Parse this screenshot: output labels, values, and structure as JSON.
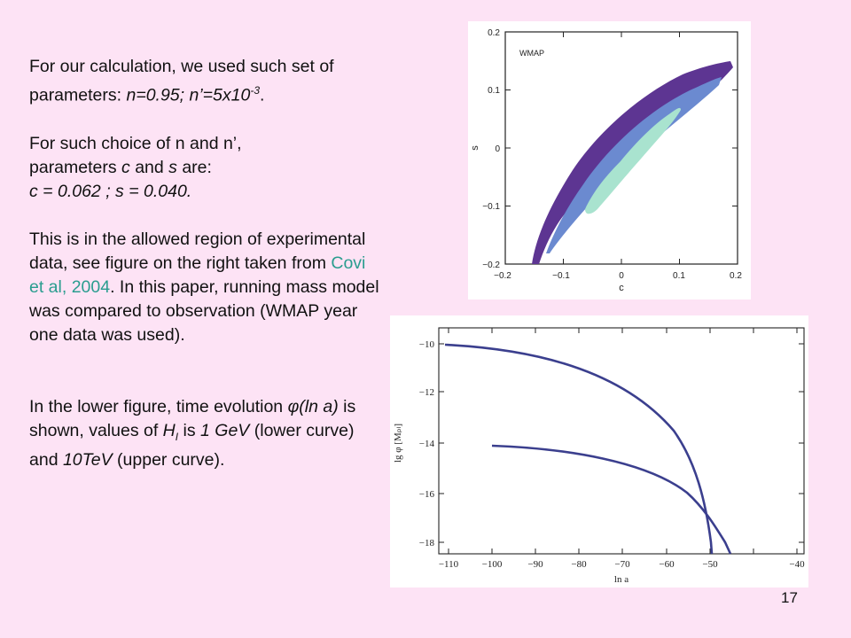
{
  "slide": {
    "p1": {
      "lead": "For our calculation, we used such set of parameters: ",
      "params": "n=0.95; n’=5x10",
      "exp": "-3",
      "end": "."
    },
    "p2": {
      "line1": "For such choice of n and n’,",
      "line2a": "parameters ",
      "c": "c",
      "line2b": " and ",
      "s": "s",
      "line2c": " are:",
      "values": "c = 0.062  ;  s = 0.040."
    },
    "p3": {
      "text_a": "This is in the allowed region of experimental data, see figure on the right taken from ",
      "citation": "Covi et al, 2004",
      "text_b": ". In this paper, running mass model was compared to observation (WMAP year one data was used)."
    },
    "p4": {
      "a": "In the lower figure, time evolution ",
      "phi": "φ(ln a)",
      "b": " is shown, values of ",
      "H": "H",
      "Hsub": "I",
      "c": " is ",
      "v1": "1 GeV",
      "d": " (lower curve) and ",
      "v2": "10TeV",
      "e": " (upper curve)."
    },
    "page_number": "17"
  },
  "figure_top": {
    "legend": "WMAP",
    "xlabel": "c",
    "ylabel": "s",
    "x_ticks": [
      "−0.2",
      "−0.1",
      "0",
      "0.1",
      "0.2"
    ],
    "y_ticks": [
      "0.2",
      "0.1",
      "0",
      "−0.1",
      "−0.2"
    ],
    "colors": {
      "outer": "#5d3592",
      "middle": "#6b8ad0",
      "inner": "#a9e3cf"
    }
  },
  "figure_bottom": {
    "xlabel": "ln a",
    "ylabel": "lg φ [Mₚₗ]",
    "x_ticks": [
      "−110",
      "−100",
      "−90",
      "−80",
      "−70",
      "−60",
      "−50",
      "−40"
    ],
    "y_ticks": [
      "−10",
      "−12",
      "−14",
      "−16",
      "−18"
    ],
    "curve_color": "#3b3f8e"
  }
}
